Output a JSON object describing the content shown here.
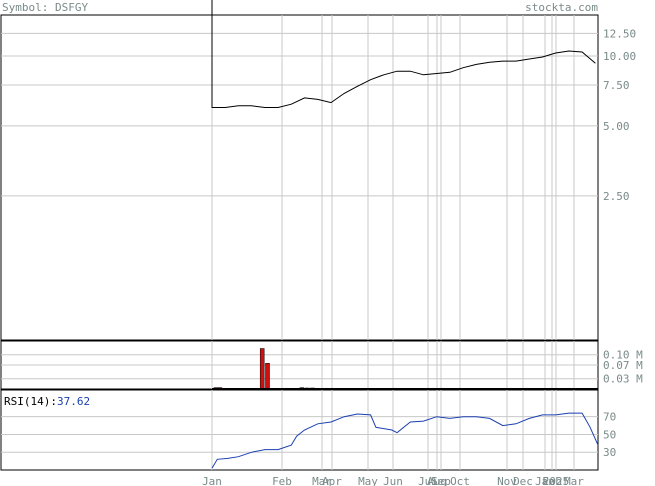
{
  "header": {
    "symbol_label": "Symbol: DSFGY",
    "site": "stockta.com"
  },
  "rsi": {
    "label": "RSI(14):",
    "value": "37.62"
  },
  "colors": {
    "price_line": "#000000",
    "rsi_line": "#1a3fb0",
    "volume_up": "#2e8b2e",
    "volume_down": "#cc1111",
    "grid": "#c8c8c8",
    "tick_text": "#7a8a8a"
  },
  "chart_data": [
    {
      "type": "line",
      "panel": "price",
      "y_tick_labels": [
        "12.50",
        "10.00",
        "7.50",
        "5.00",
        "2.50"
      ],
      "y_ticks": [
        12.5,
        10.0,
        7.5,
        5.0,
        2.5
      ],
      "scale": "log",
      "ylim": [
        0.6,
        15
      ],
      "x_tick_labels": [
        "Jan",
        "Feb",
        "Mar",
        "Apr",
        "May",
        "Jun",
        "Jul",
        "Aug",
        "Sep",
        "Oct",
        "Nov",
        "Dec",
        "Jan",
        "Feb",
        "2025",
        "Mar"
      ],
      "x": [
        0.0,
        0.5,
        1.0,
        1.5,
        2.0,
        2.5,
        3.0,
        3.5,
        4.0,
        4.5,
        5.0,
        5.5,
        6.0,
        6.5,
        7.0,
        7.5,
        8.0,
        8.5,
        9.0,
        9.5,
        10.0,
        10.5,
        11.0,
        11.5,
        12.0,
        12.5,
        13.0,
        13.5,
        14.0,
        14.5
      ],
      "values": [
        6.0,
        6.0,
        6.1,
        6.1,
        6.0,
        6.0,
        6.2,
        6.6,
        6.5,
        6.3,
        6.9,
        7.4,
        7.9,
        8.3,
        8.6,
        8.6,
        8.3,
        8.4,
        8.5,
        8.9,
        9.2,
        9.4,
        9.5,
        9.5,
        9.7,
        9.9,
        10.3,
        10.5,
        10.4,
        9.3
      ]
    },
    {
      "type": "bar",
      "panel": "volume",
      "y_tick_labels": [
        "0.10 M",
        "0.07 M",
        "0.03 M"
      ],
      "y_ticks": [
        0.1,
        0.07,
        0.03
      ],
      "ylim": [
        0,
        0.14
      ],
      "bars": [
        {
          "x": 0.15,
          "value": 0.004,
          "dir": "down"
        },
        {
          "x": 0.3,
          "value": 0.004,
          "dir": "down"
        },
        {
          "x": 1.9,
          "value": 0.118,
          "dir": "down"
        },
        {
          "x": 2.1,
          "value": 0.075,
          "dir": "down"
        },
        {
          "x": 2.3,
          "value": 0.002,
          "dir": "up"
        },
        {
          "x": 2.6,
          "value": 0.002,
          "dir": "up"
        },
        {
          "x": 3.4,
          "value": 0.004,
          "dir": "up"
        },
        {
          "x": 3.6,
          "value": 0.003,
          "dir": "up"
        },
        {
          "x": 3.8,
          "value": 0.003,
          "dir": "up"
        },
        {
          "x": 7.2,
          "value": 0.002,
          "dir": "down"
        },
        {
          "x": 7.8,
          "value": 0.002,
          "dir": "down"
        },
        {
          "x": 10.9,
          "value": 0.002,
          "dir": "up"
        },
        {
          "x": 11.6,
          "value": 0.002,
          "dir": "up"
        }
      ]
    },
    {
      "type": "line",
      "panel": "rsi",
      "y_tick_labels": [
        "70",
        "50",
        "30"
      ],
      "y_ticks": [
        70,
        50,
        30
      ],
      "ylim": [
        10,
        100
      ],
      "x": [
        0.0,
        0.2,
        0.6,
        1.0,
        1.5,
        2.0,
        2.5,
        3.0,
        3.2,
        3.5,
        4.0,
        4.5,
        5.0,
        5.5,
        6.0,
        6.2,
        6.8,
        7.0,
        7.5,
        8.0,
        8.5,
        9.0,
        9.5,
        10.0,
        10.5,
        11.0,
        11.5,
        12.0,
        12.5,
        13.0,
        13.5,
        14.0,
        14.3,
        14.6
      ],
      "values": [
        12,
        22,
        23,
        25,
        30,
        33,
        33,
        38,
        48,
        55,
        62,
        64,
        70,
        73,
        72,
        58,
        55,
        52,
        64,
        65,
        70,
        68,
        70,
        70,
        68,
        60,
        62,
        68,
        72,
        72,
        74,
        74,
        58,
        38
      ]
    }
  ]
}
